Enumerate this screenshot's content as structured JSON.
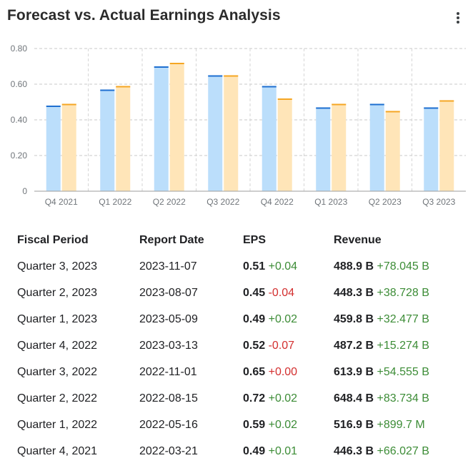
{
  "title": "Forecast vs. Actual Earnings Analysis",
  "menu_icon": "more-vert-icon",
  "chart_data": {
    "type": "bar",
    "categories": [
      "Q4 2021",
      "Q1 2022",
      "Q2 2022",
      "Q3 2022",
      "Q4 2022",
      "Q1 2023",
      "Q2 2023",
      "Q3 2023"
    ],
    "series": [
      {
        "values": [
          0.48,
          0.57,
          0.7,
          0.65,
          0.59,
          0.47,
          0.49,
          0.47
        ],
        "color": "#bbdefb",
        "cap_color": "#1e6fd0"
      },
      {
        "values": [
          0.49,
          0.59,
          0.72,
          0.65,
          0.52,
          0.49,
          0.45,
          0.51
        ],
        "color": "#ffe5b8",
        "cap_color": "#f5a623"
      }
    ],
    "y_ticks": [
      "0.80",
      "0.60",
      "0.40",
      "0.20",
      "0"
    ],
    "ylim": [
      0,
      0.8
    ],
    "grid": true
  },
  "table": {
    "headers": [
      "Fiscal Period",
      "Report Date",
      "EPS",
      "Revenue"
    ],
    "rows": [
      {
        "period": "Quarter 3, 2023",
        "date": "2023-11-07",
        "eps": "0.51",
        "eps_diff": "+0.04",
        "eps_dir": "pos",
        "rev": "488.9 B",
        "rev_diff": "+78.045 B",
        "rev_dir": "pos"
      },
      {
        "period": "Quarter 2, 2023",
        "date": "2023-08-07",
        "eps": "0.45",
        "eps_diff": "-0.04",
        "eps_dir": "neg",
        "rev": "448.3 B",
        "rev_diff": "+38.728 B",
        "rev_dir": "pos"
      },
      {
        "period": "Quarter 1, 2023",
        "date": "2023-05-09",
        "eps": "0.49",
        "eps_diff": "+0.02",
        "eps_dir": "pos",
        "rev": "459.8 B",
        "rev_diff": "+32.477 B",
        "rev_dir": "pos"
      },
      {
        "period": "Quarter 4, 2022",
        "date": "2023-03-13",
        "eps": "0.52",
        "eps_diff": "-0.07",
        "eps_dir": "neg",
        "rev": "487.2 B",
        "rev_diff": "+15.274 B",
        "rev_dir": "pos"
      },
      {
        "period": "Quarter 3, 2022",
        "date": "2022-11-01",
        "eps": "0.65",
        "eps_diff": "+0.00",
        "eps_dir": "neg",
        "rev": "613.9 B",
        "rev_diff": "+54.555 B",
        "rev_dir": "pos"
      },
      {
        "period": "Quarter 2, 2022",
        "date": "2022-08-15",
        "eps": "0.72",
        "eps_diff": "+0.02",
        "eps_dir": "pos",
        "rev": "648.4 B",
        "rev_diff": "+83.734 B",
        "rev_dir": "pos"
      },
      {
        "period": "Quarter 1, 2022",
        "date": "2022-05-16",
        "eps": "0.59",
        "eps_diff": "+0.02",
        "eps_dir": "pos",
        "rev": "516.9 B",
        "rev_diff": "+899.7 M",
        "rev_dir": "pos"
      },
      {
        "period": "Quarter 4, 2021",
        "date": "2022-03-21",
        "eps": "0.49",
        "eps_diff": "+0.01",
        "eps_dir": "pos",
        "rev": "446.3 B",
        "rev_diff": "+66.027 B",
        "rev_dir": "pos"
      }
    ]
  }
}
